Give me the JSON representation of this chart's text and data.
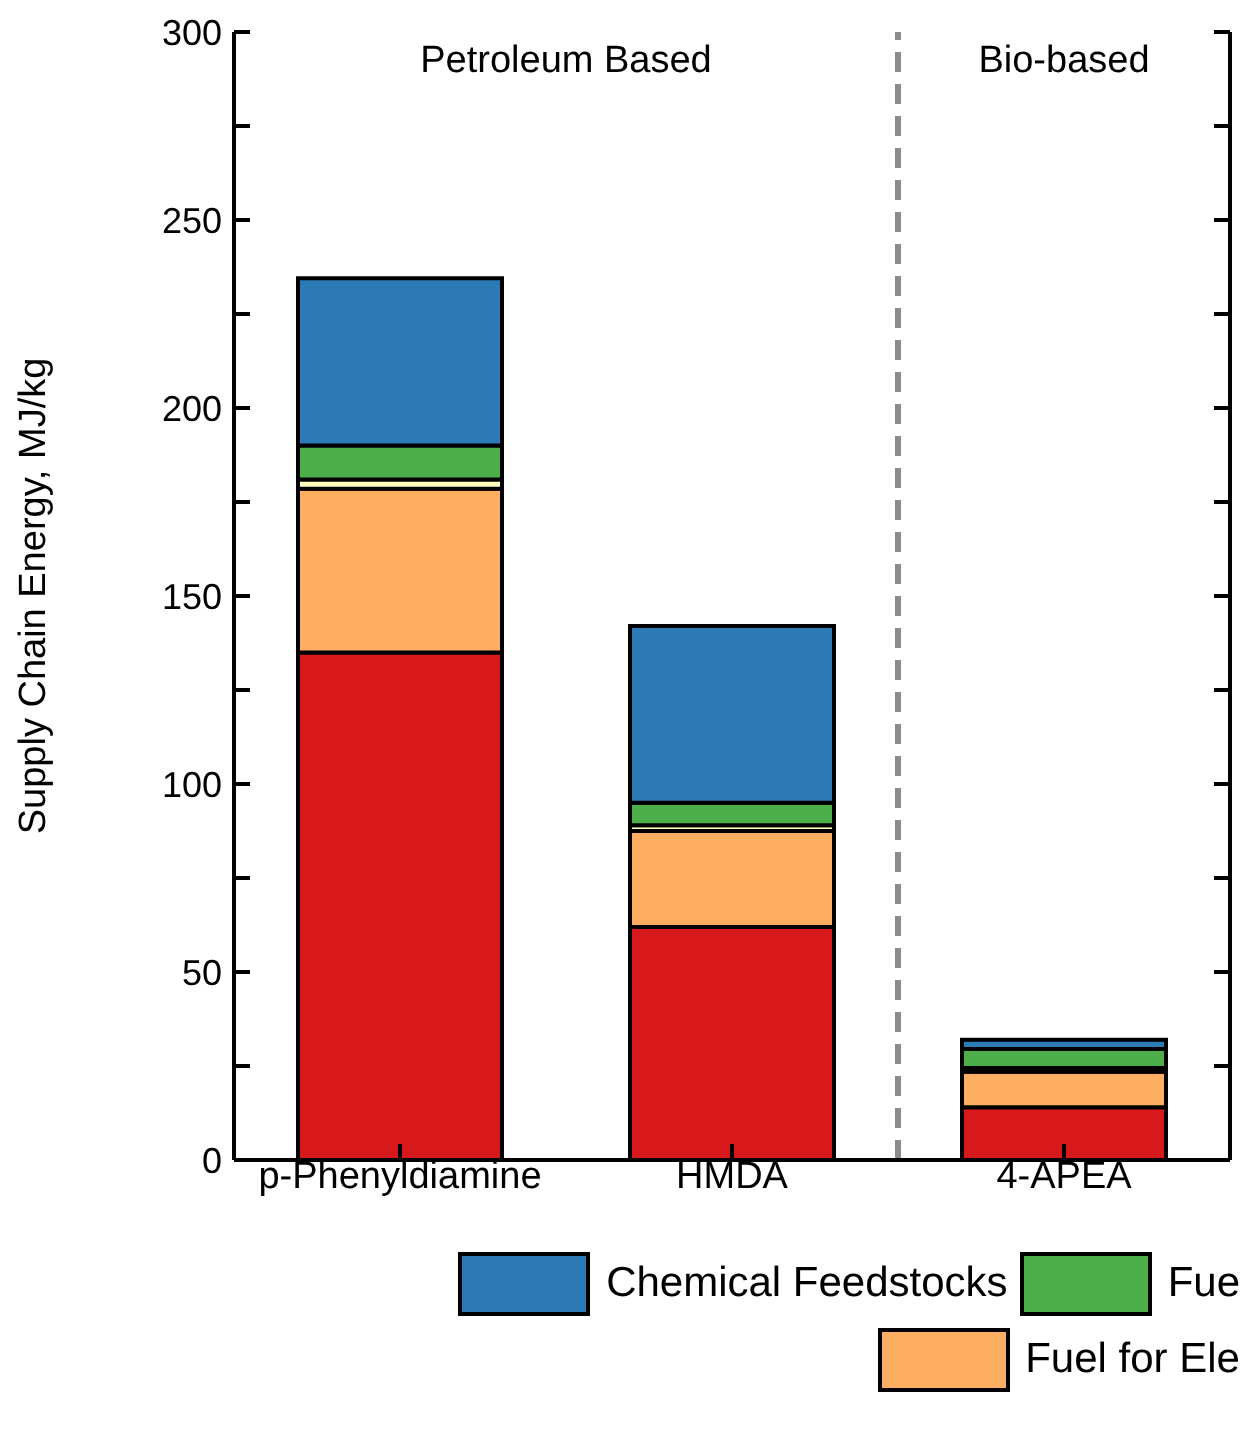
{
  "chart_data": {
    "type": "bar",
    "stacked": true,
    "ylabel": "Supply Chain Energy, MJ/kg",
    "categories": [
      "p-Phenyldiamine",
      "HMDA",
      "4-APEA"
    ],
    "series": [
      {
        "color": "#d7191c",
        "values": [
          135,
          62,
          14
        ]
      },
      {
        "name": "Fuel for Ele",
        "color": "#fdae61",
        "values": [
          43.5,
          25.5,
          9.5
        ]
      },
      {
        "color": "#ffffbf",
        "values": [
          2.5,
          1.5,
          1
        ]
      },
      {
        "name": "Fue",
        "color": "#4daf4a",
        "values": [
          9,
          6,
          5
        ]
      },
      {
        "name": "Chemical Feedstocks",
        "color": "#2c7bb6",
        "values": [
          44.5,
          47,
          2.5
        ]
      }
    ],
    "ylim": [
      0,
      300
    ],
    "yticks": [
      0,
      {
        "value": 25,
        "label": null
      },
      50,
      {
        "value": 75,
        "label": null
      },
      100,
      {
        "value": 125,
        "label": null
      },
      150,
      {
        "value": 175,
        "label": null
      },
      200,
      {
        "value": 225,
        "label": null
      },
      250,
      {
        "value": 275,
        "label": null
      },
      300
    ],
    "annotations": [
      "Petroleum Based",
      "Bio-based"
    ],
    "legend": "bottom"
  }
}
